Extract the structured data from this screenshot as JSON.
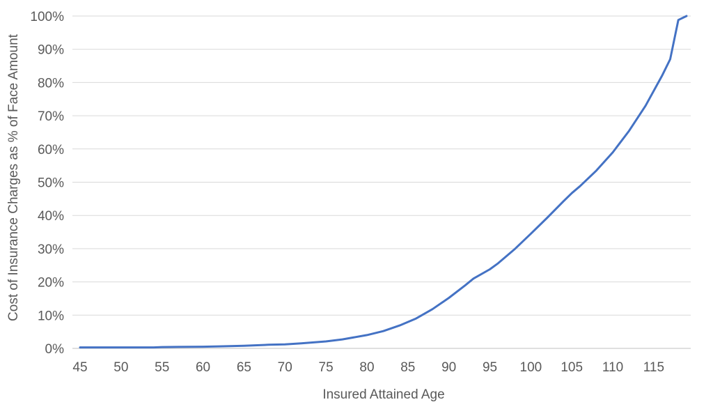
{
  "chart_data": {
    "type": "line",
    "title": "",
    "xlabel": "Insured Attained Age",
    "ylabel": "Cost of Insurance Charges as % of Face Amount",
    "xlim": [
      45,
      119
    ],
    "ylim": [
      0,
      1
    ],
    "x_ticks": [
      45,
      50,
      55,
      60,
      65,
      70,
      75,
      80,
      85,
      90,
      95,
      100,
      105,
      110,
      115
    ],
    "x_tick_labels": [
      "45",
      "50",
      "55",
      "60",
      "65",
      "70",
      "75",
      "80",
      "85",
      "90",
      "95",
      "100",
      "105",
      "110",
      "115"
    ],
    "y_ticks": [
      0,
      0.1,
      0.2,
      0.3,
      0.4,
      0.5,
      0.6,
      0.7,
      0.8,
      0.9,
      1.0
    ],
    "y_tick_labels": [
      "0%",
      "10%",
      "20%",
      "30%",
      "40%",
      "50%",
      "60%",
      "70%",
      "80%",
      "90%",
      "100%"
    ],
    "grid": {
      "horizontal": true,
      "vertical": false
    },
    "legend": "none",
    "colors": {
      "line": "#4472C4",
      "grid": "#d9d9d9",
      "text": "#595959"
    },
    "series": [
      {
        "x": [
          45,
          50,
          54,
          55,
          60,
          62,
          65,
          68,
          70,
          72,
          75,
          77,
          80,
          82,
          84,
          86,
          88,
          90,
          92,
          93,
          95,
          96,
          98,
          100,
          102,
          104,
          105,
          106,
          108,
          110,
          112,
          114,
          116,
          117,
          118,
          119
        ],
        "values": [
          0.003,
          0.003,
          0.003,
          0.004,
          0.005,
          0.006,
          0.008,
          0.011,
          0.012,
          0.015,
          0.021,
          0.027,
          0.04,
          0.052,
          0.069,
          0.09,
          0.118,
          0.152,
          0.19,
          0.21,
          0.238,
          0.256,
          0.298,
          0.345,
          0.393,
          0.443,
          0.467,
          0.488,
          0.535,
          0.59,
          0.655,
          0.73,
          0.82,
          0.87,
          0.988,
          1.0
        ]
      }
    ]
  }
}
